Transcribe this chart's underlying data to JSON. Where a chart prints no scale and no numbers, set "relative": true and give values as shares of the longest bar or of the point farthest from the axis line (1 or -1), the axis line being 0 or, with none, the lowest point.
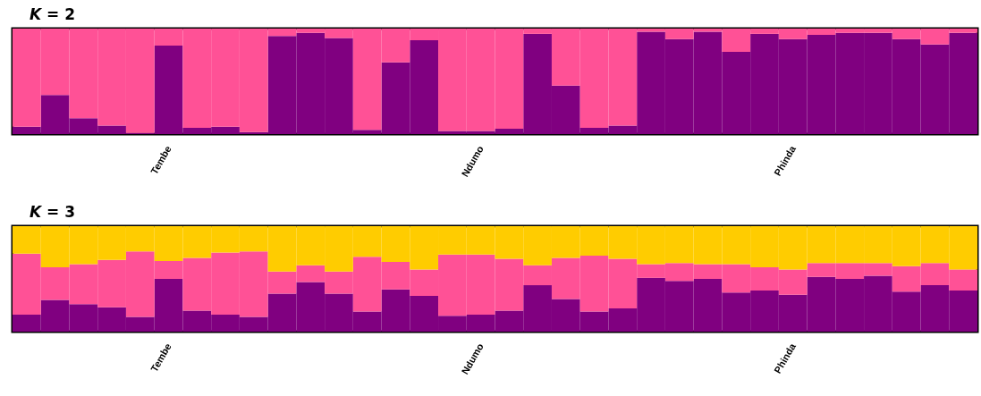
{
  "chart_data": [
    {
      "type": "bar",
      "title": "K = 2",
      "stacked": true,
      "relative": true,
      "categories": [
        null,
        null,
        null,
        null,
        null,
        "Tembe",
        null,
        null,
        null,
        null,
        null,
        null,
        null,
        null,
        null,
        null,
        "Ndumo",
        null,
        null,
        null,
        null,
        null,
        null,
        null,
        null,
        null,
        null,
        "Phinda",
        null,
        null,
        null,
        null,
        null,
        null
      ],
      "series": [
        {
          "color": "#800080",
          "values": [
            0.07,
            0.37,
            0.15,
            0.08,
            0.01,
            0.84,
            0.06,
            0.07,
            0.02,
            0.93,
            0.96,
            0.91,
            0.04,
            0.68,
            0.89,
            0.03,
            0.03,
            0.05,
            0.95,
            0.46,
            0.06,
            0.08,
            0.97,
            0.9,
            0.97,
            0.78,
            0.95,
            0.9,
            0.94,
            0.96,
            0.96,
            0.9,
            0.85,
            0.96
          ]
        },
        {
          "color": "#ff5196",
          "values": [
            0.93,
            0.63,
            0.85,
            0.92,
            0.99,
            0.16,
            0.94,
            0.93,
            0.98,
            0.07,
            0.04,
            0.09,
            0.96,
            0.32,
            0.11,
            0.97,
            0.97,
            0.95,
            0.05,
            0.54,
            0.94,
            0.92,
            0.03,
            0.1,
            0.03,
            0.22,
            0.05,
            0.1,
            0.06,
            0.04,
            0.04,
            0.1,
            0.15,
            0.04
          ]
        }
      ]
    },
    {
      "type": "bar",
      "title": "K = 3",
      "stacked": true,
      "relative": true,
      "categories": [
        null,
        null,
        null,
        null,
        null,
        "Tembe",
        null,
        null,
        null,
        null,
        null,
        null,
        null,
        null,
        null,
        null,
        "Ndumo",
        null,
        null,
        null,
        null,
        null,
        null,
        null,
        null,
        null,
        null,
        "Phinda",
        null,
        null,
        null,
        null,
        null,
        null
      ],
      "series": [
        {
          "color": "#800080",
          "values": [
            0.16,
            0.3,
            0.26,
            0.23,
            0.14,
            0.5,
            0.2,
            0.16,
            0.14,
            0.36,
            0.47,
            0.36,
            0.19,
            0.4,
            0.34,
            0.15,
            0.16,
            0.2,
            0.44,
            0.31,
            0.19,
            0.22,
            0.51,
            0.48,
            0.5,
            0.37,
            0.39,
            0.35,
            0.52,
            0.5,
            0.53,
            0.38,
            0.44,
            0.39
          ]
        },
        {
          "color": "#ff5196",
          "values": [
            0.58,
            0.31,
            0.38,
            0.45,
            0.62,
            0.17,
            0.5,
            0.59,
            0.62,
            0.21,
            0.16,
            0.21,
            0.52,
            0.26,
            0.25,
            0.58,
            0.57,
            0.49,
            0.19,
            0.39,
            0.53,
            0.47,
            0.13,
            0.17,
            0.14,
            0.27,
            0.22,
            0.24,
            0.13,
            0.15,
            0.12,
            0.24,
            0.21,
            0.2
          ]
        },
        {
          "color": "#ffcc00",
          "values": [
            0.26,
            0.39,
            0.36,
            0.32,
            0.24,
            0.33,
            0.3,
            0.25,
            0.24,
            0.43,
            0.37,
            0.43,
            0.29,
            0.34,
            0.41,
            0.27,
            0.27,
            0.31,
            0.37,
            0.3,
            0.28,
            0.31,
            0.36,
            0.35,
            0.36,
            0.36,
            0.39,
            0.41,
            0.35,
            0.35,
            0.35,
            0.38,
            0.35,
            0.41
          ]
        }
      ]
    }
  ]
}
